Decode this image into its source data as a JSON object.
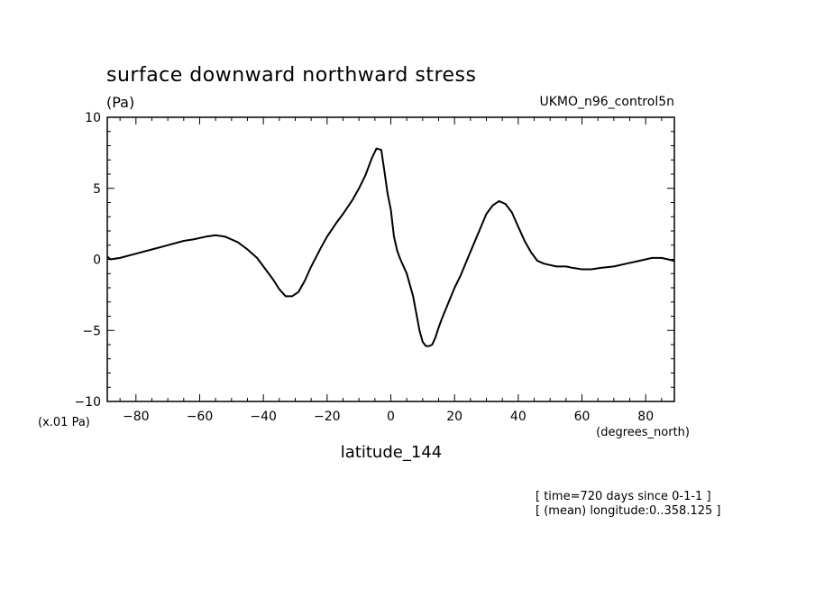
{
  "chart_data": {
    "type": "line",
    "title": "surface downward northward stress",
    "units": "(Pa)",
    "dataset": "UKMO_n96_control5n",
    "xlabel": "latitude_144",
    "xunits": "(degrees_north)",
    "yscale_label": "(x.01 Pa)",
    "xlim": [
      -89,
      89
    ],
    "ylim": [
      -10,
      10
    ],
    "xticks": [
      -80,
      -60,
      -40,
      -20,
      0,
      20,
      40,
      60,
      80
    ],
    "yticks": [
      -10,
      -5,
      0,
      5,
      10
    ],
    "grid": false,
    "notes": [
      "[ time=720 days since 0-1-1 ]",
      "[ (mean) longitude:0..358.125 ]"
    ],
    "series": [
      {
        "x": [
          -89,
          -88,
          -85,
          -80,
          -75,
          -70,
          -65,
          -62,
          -58,
          -55,
          -52,
          -48,
          -45,
          -42,
          -40,
          -37,
          -35,
          -33,
          -31,
          -29,
          -27,
          -25,
          -22,
          -20,
          -17,
          -15,
          -12,
          -10,
          -8,
          -6,
          -4.5,
          -3,
          -2,
          -1,
          0,
          1,
          2,
          3,
          5,
          7,
          8,
          9,
          10,
          11,
          12,
          13,
          14,
          15,
          16,
          18,
          20,
          22,
          24,
          27,
          30,
          32,
          34,
          36,
          38,
          39,
          40,
          42,
          44,
          46,
          48,
          50,
          52,
          54,
          55,
          57,
          60,
          63,
          66,
          70,
          74,
          78,
          82,
          85,
          87,
          89
        ],
        "values": [
          0.2,
          0.0,
          0.1,
          0.4,
          0.7,
          1.0,
          1.3,
          1.4,
          1.6,
          1.7,
          1.6,
          1.2,
          0.7,
          0.1,
          -0.5,
          -1.4,
          -2.1,
          -2.6,
          -2.6,
          -2.3,
          -1.5,
          -0.5,
          0.8,
          1.6,
          2.6,
          3.2,
          4.2,
          5.0,
          5.9,
          7.1,
          7.8,
          7.7,
          6.2,
          4.6,
          3.5,
          1.6,
          0.6,
          0.0,
          -1.0,
          -2.6,
          -3.8,
          -5.0,
          -5.8,
          -6.1,
          -6.1,
          -6.0,
          -5.5,
          -4.8,
          -4.2,
          -3.1,
          -2.0,
          -1.1,
          0.0,
          1.6,
          3.2,
          3.8,
          4.1,
          3.9,
          3.3,
          2.8,
          2.3,
          1.3,
          0.5,
          -0.1,
          -0.3,
          -0.4,
          -0.5,
          -0.5,
          -0.5,
          -0.6,
          -0.7,
          -0.7,
          -0.6,
          -0.5,
          -0.3,
          -0.1,
          0.1,
          0.1,
          0.0,
          -0.1
        ]
      }
    ]
  }
}
